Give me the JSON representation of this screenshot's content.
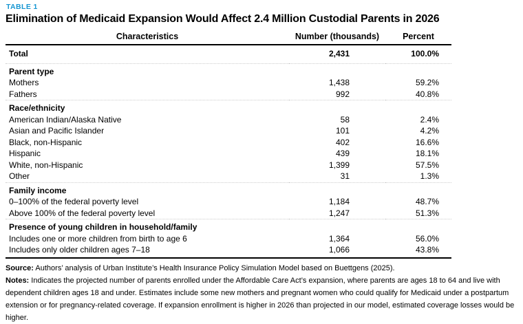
{
  "table_label": "TABLE 1",
  "title": "Elimination of Medicaid Expansion Would Affect 2.4 Million Custodial Parents in 2026",
  "columns": [
    "Characteristics",
    "Number (thousands)",
    "Percent"
  ],
  "total_row": {
    "label": "Total",
    "number": "2,431",
    "percent": "100.0%"
  },
  "sections": [
    {
      "header": "Parent type",
      "rows": [
        {
          "label": "Mothers",
          "number": "1,438",
          "percent": "59.2%"
        },
        {
          "label": "Fathers",
          "number": "992",
          "percent": "40.8%"
        }
      ]
    },
    {
      "header": "Race/ethnicity",
      "rows": [
        {
          "label": "American Indian/Alaska Native",
          "number": "58",
          "percent": "2.4%"
        },
        {
          "label": "Asian and Pacific Islander",
          "number": "101",
          "percent": "4.2%"
        },
        {
          "label": "Black, non-Hispanic",
          "number": "402",
          "percent": "16.6%"
        },
        {
          "label": "Hispanic",
          "number": "439",
          "percent": "18.1%"
        },
        {
          "label": "White, non-Hispanic",
          "number": "1,399",
          "percent": "57.5%"
        },
        {
          "label": "Other",
          "number": "31",
          "percent": "1.3%"
        }
      ]
    },
    {
      "header": "Family income",
      "rows": [
        {
          "label": "0–100% of the federal poverty level",
          "number": "1,184",
          "percent": "48.7%"
        },
        {
          "label": "Above 100% of the federal poverty level",
          "number": "1,247",
          "percent": "51.3%"
        }
      ]
    },
    {
      "header": "Presence of young children in household/family",
      "rows": [
        {
          "label": "Includes one or more children from birth to age 6",
          "number": "1,364",
          "percent": "56.0%"
        },
        {
          "label": "Includes only older children ages 7–18",
          "number": "1,066",
          "percent": "43.8%"
        }
      ]
    }
  ],
  "footer": {
    "source_label": "Source:",
    "source_text": " Authors’ analysis of Urban Institute’s Health Insurance Policy Simulation Model based on Buettgens (2025).",
    "notes_label": "Notes:",
    "notes_text": " Indicates the projected number of parents enrolled under the Affordable Care Act’s expansion, where parents are ages 18 to 64 and live with dependent children ages 18 and under. Estimates include some new mothers and pregnant women who could qualify for Medicaid under a postpartum extension or for pregnancy-related coverage. If expansion enrollment is higher in 2026 than projected in our model, estimated coverage losses would be higher."
  },
  "colors": {
    "accent": "#1696d2",
    "text": "#000000",
    "divider": "#cccccc"
  }
}
